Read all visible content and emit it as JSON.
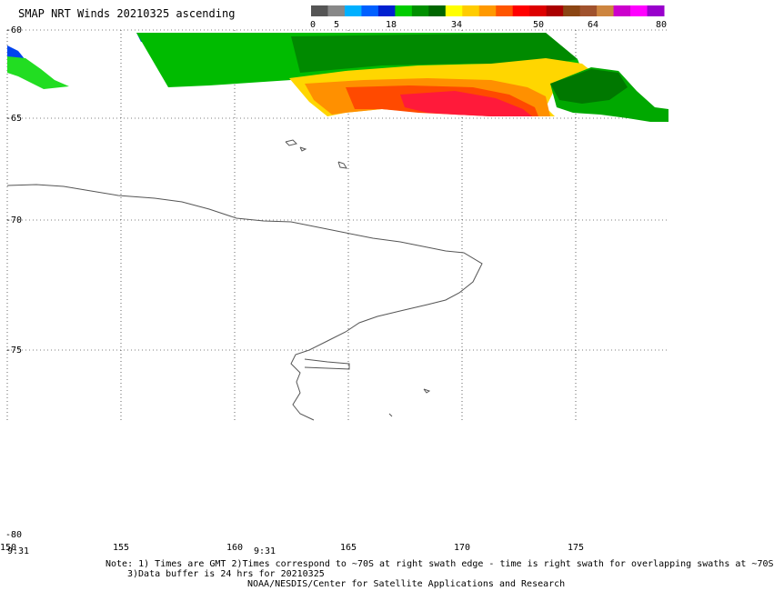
{
  "title": "SMAP NRT Winds 20210325 ascending",
  "legend": {
    "labels": [
      "0",
      "5",
      "18",
      "34",
      "50",
      "64",
      "80"
    ],
    "colors": [
      "#555555",
      "#888888",
      "#00b0ff",
      "#0060ff",
      "#0020d0",
      "#00cc00",
      "#009000",
      "#006600",
      "#ffff00",
      "#ffcc00",
      "#ff9900",
      "#ff5500",
      "#ff0000",
      "#dd0000",
      "#aa0000",
      "#8b4513",
      "#a0522d",
      "#cd853f",
      "#cc00cc",
      "#ff00ff",
      "#9900cc"
    ]
  },
  "axes": {
    "lat_labels": [
      "-60",
      "-65",
      "-70",
      "-75",
      "-80"
    ],
    "lon_labels": [
      "150",
      "155",
      "160",
      "165",
      "170",
      "175"
    ],
    "time_labels": [
      "9:31",
      "9:31"
    ]
  },
  "notes": {
    "line1": "Note: 1) Times are GMT 2)Times correspond to ~70S at right swath edge - time is right swath for overlapping swaths at ~70S",
    "line2": "3)Data buffer is 24 hrs for 20210325",
    "line3": "NOAA/NESDIS/Center for Satellite Applications and Research"
  }
}
